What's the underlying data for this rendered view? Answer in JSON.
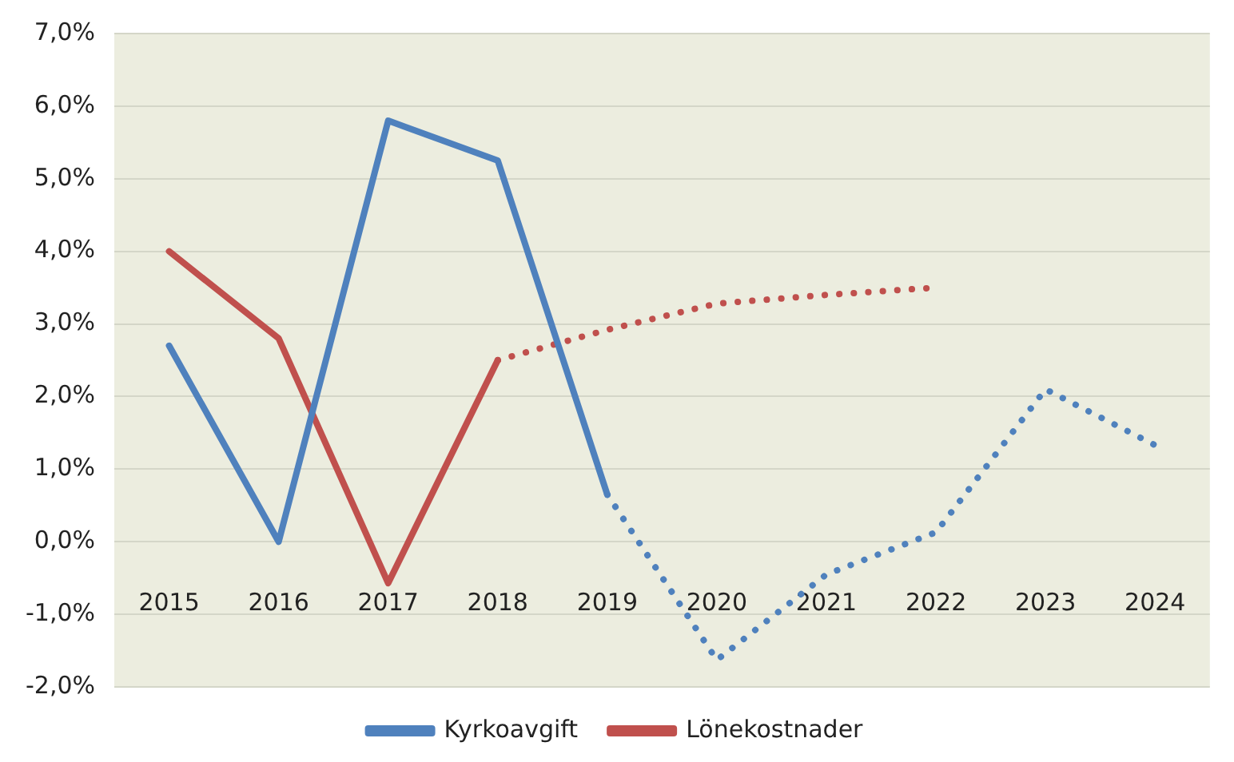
{
  "chart_data": {
    "type": "line",
    "categories": [
      "2015",
      "2016",
      "2017",
      "2018",
      "2019",
      "2020",
      "2021",
      "2022",
      "2023",
      "2024"
    ],
    "series": [
      {
        "name": "Kyrkoavgift",
        "color": "#4f81bd",
        "line_style": "solid",
        "values": [
          2.7,
          0,
          5.8,
          5.25,
          0.65,
          null,
          null,
          null,
          null,
          null
        ]
      },
      {
        "color": "#4f81bd",
        "line_style": "dotted",
        "values": [
          null,
          null,
          null,
          null,
          0.65,
          -1.63,
          -0.45,
          0.13,
          2.1,
          1.33
        ]
      },
      {
        "name": "Lönekostnader",
        "color": "#c0504d",
        "line_style": "solid",
        "values": [
          4.0,
          2.8,
          -0.57,
          2.5,
          null,
          null,
          null,
          null,
          null,
          null
        ]
      },
      {
        "color": "#c0504d",
        "line_style": "dotted",
        "values": [
          null,
          null,
          null,
          2.5,
          2.92,
          3.28,
          3.4,
          3.5,
          null,
          null
        ]
      }
    ],
    "ylim": [
      -2,
      7
    ],
    "yticks": [
      {
        "value": -2,
        "label": "-2,0%"
      },
      {
        "value": -1,
        "label": "-1,0%"
      },
      {
        "value": 0,
        "label": "0,0%"
      },
      {
        "value": 1,
        "label": "1,0%"
      },
      {
        "value": 2,
        "label": "2,0%"
      },
      {
        "value": 3,
        "label": "3,0%"
      },
      {
        "value": 4,
        "label": "4,0%"
      },
      {
        "value": 5,
        "label": "5,0%"
      },
      {
        "value": 6,
        "label": "6,0%"
      },
      {
        "value": 7,
        "label": "7,0%"
      }
    ],
    "grid": "y",
    "legend": "bottom",
    "marker": "none"
  }
}
